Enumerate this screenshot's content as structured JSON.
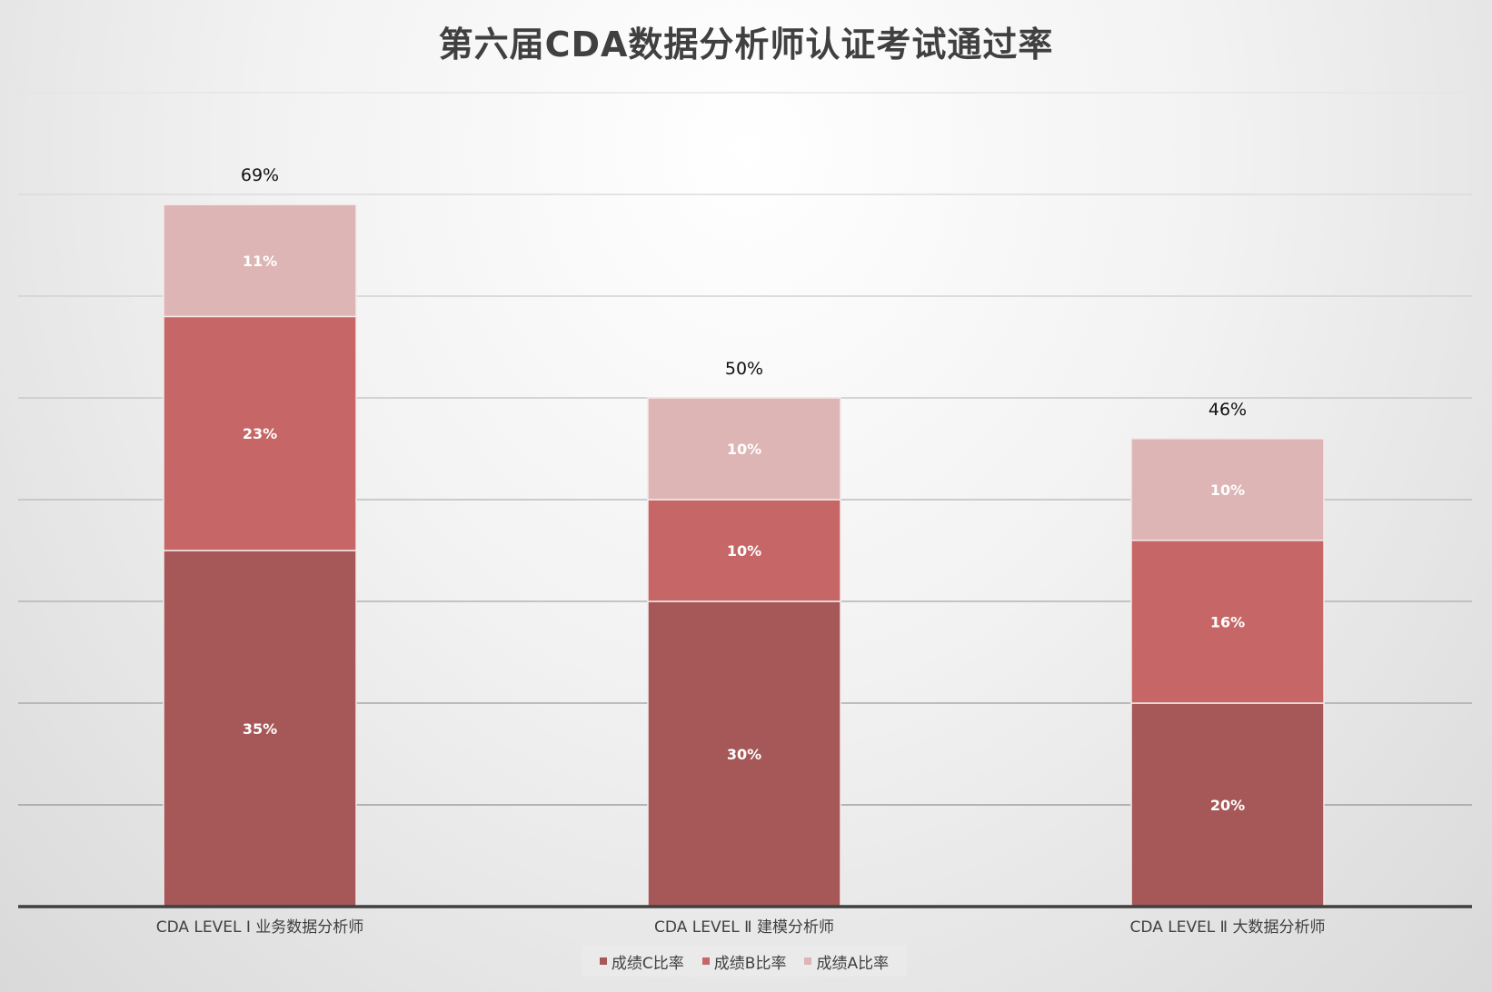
{
  "chart_data": {
    "type": "bar",
    "stacked": true,
    "title": "第六届CDA数据分析师认证考试通过率",
    "categories": [
      "CDA LEVEL  Ⅰ 业务数据分析师",
      "CDA LEVEL  Ⅱ 建模分析师",
      "CDA LEVEL  Ⅱ 大数据分析师"
    ],
    "series": [
      {
        "name": "成绩C比率",
        "values": [
          35,
          30,
          20
        ],
        "labels": [
          "35%",
          "30%",
          "20%"
        ],
        "color": "#a65757"
      },
      {
        "name": "成绩B比率",
        "values": [
          23,
          10,
          16
        ],
        "labels": [
          "23%",
          "10%",
          "16%"
        ],
        "color": "#c66666"
      },
      {
        "name": "成绩A比率",
        "values": [
          11,
          10,
          10
        ],
        "labels": [
          "11%",
          "10%",
          "10%"
        ],
        "color": "#ddb5b5"
      }
    ],
    "totals": [
      "69%",
      "50%",
      "46%"
    ],
    "ylim": [
      0,
      80
    ],
    "grid": true,
    "legend_position": "bottom"
  }
}
